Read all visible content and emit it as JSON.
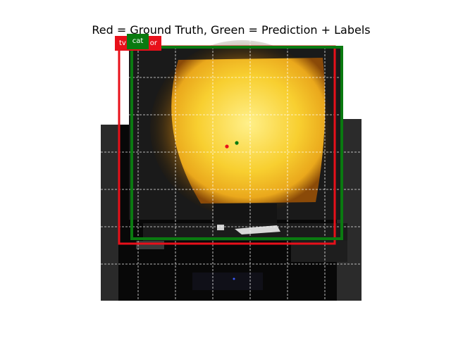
{
  "title": "Red = Ground Truth, Green = Prediction + Labels",
  "ground_truth": {
    "label": "tv",
    "label_tail": "or",
    "color": "#e8101a"
  },
  "prediction": {
    "label": "cat",
    "color": "#0a7a10"
  },
  "colors": {
    "screen_yellow": "#f6c62a",
    "grid": "#ffffff"
  }
}
